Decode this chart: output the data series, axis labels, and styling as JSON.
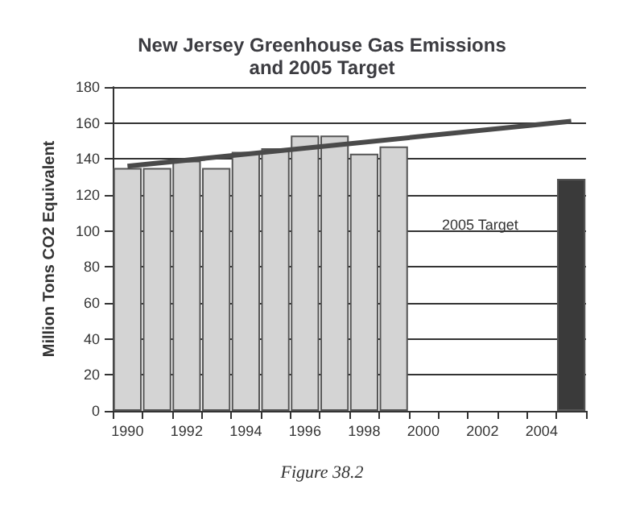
{
  "chart_data": {
    "type": "bar",
    "title": "New Jersey Greenhouse Gas Emissions\nand 2005 Target",
    "ylabel": "Million Tons CO2 Equivalent",
    "categories": [
      "1990",
      null,
      "1992",
      null,
      "1994",
      null,
      "1996",
      null,
      "1998",
      null,
      "2000",
      null,
      "2002",
      null,
      "2004",
      null
    ],
    "series": [
      {
        "values": [
          135,
          135,
          139,
          135,
          144,
          146,
          153,
          153,
          143,
          147,
          null,
          null,
          null,
          null,
          null,
          129
        ],
        "colors": [
          "#d4d4d4",
          "#d4d4d4",
          "#d4d4d4",
          "#d4d4d4",
          "#d4d4d4",
          "#d4d4d4",
          "#d4d4d4",
          "#d4d4d4",
          "#d4d4d4",
          "#d4d4d4",
          "#d4d4d4",
          "#d4d4d4",
          "#d4d4d4",
          "#d4d4d4",
          "#d4d4d4",
          "#3a3a3a"
        ]
      },
      {
        "type": "line",
        "color": "#4a4a4a",
        "values": [
          136,
          null,
          null,
          null,
          null,
          null,
          null,
          null,
          null,
          null,
          null,
          null,
          null,
          null,
          null,
          161
        ]
      }
    ],
    "ylim": [
      0,
      180
    ],
    "yticks": [
      0,
      20,
      40,
      60,
      80,
      100,
      120,
      140,
      160,
      180
    ],
    "grid": "y",
    "marker": "none",
    "annotations": [
      "2005 Target",
      "Figure 38.2"
    ]
  }
}
